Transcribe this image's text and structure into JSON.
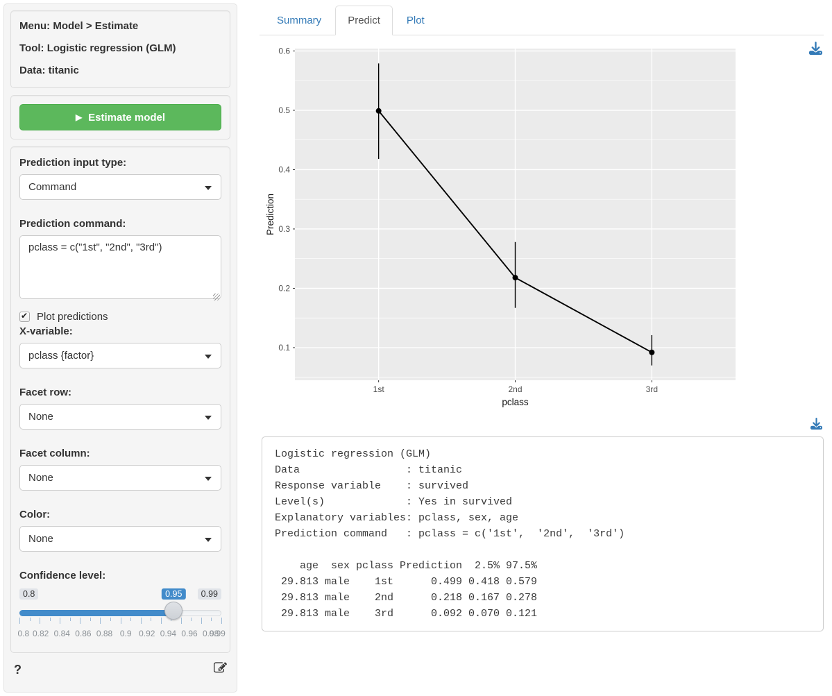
{
  "colors": {
    "accent_blue": "#337ab7",
    "slider_blue": "#428bca",
    "button_green": "#5cb85c",
    "panel_gray": "#ebebeb"
  },
  "sidebar": {
    "info": [
      "Menu: Model > Estimate",
      "Tool: Logistic regression (GLM)",
      "Data: titanic"
    ],
    "estimate_button": "Estimate model",
    "play_glyph": "▶",
    "controls": {
      "input_type_label": "Prediction input type:",
      "input_type_value": "Command",
      "command_label": "Prediction command:",
      "command_value": "pclass = c(\"1st\", \"2nd\", \"3rd\")",
      "plot_predictions": {
        "label": "Plot predictions",
        "checked": true
      },
      "xvar_label": "X-variable:",
      "xvar_value": "pclass {factor}",
      "facet_row_label": "Facet row:",
      "facet_row_value": "None",
      "facet_col_label": "Facet column:",
      "facet_col_value": "None",
      "color_label": "Color:",
      "color_value": "None",
      "conf_label": "Confidence level:",
      "slider": {
        "min": 0.8,
        "max": 0.99,
        "value": 0.95,
        "min_label": "0.8",
        "max_label": "0.99",
        "value_label": "0.95",
        "tick_labels": [
          "0.8",
          "0.82",
          "0.84",
          "0.86",
          "0.88",
          "0.9",
          "0.92",
          "0.94",
          "0.96",
          "0.98",
          "0.99"
        ],
        "n_ticks": 21
      }
    },
    "help_label": "?"
  },
  "tabs": [
    {
      "label": "Summary",
      "active": false
    },
    {
      "label": "Predict",
      "active": true
    },
    {
      "label": "Plot",
      "active": false
    }
  ],
  "chart_data": {
    "type": "line",
    "x": [
      "1st",
      "2nd",
      "3rd"
    ],
    "series": [
      {
        "name": "Prediction",
        "values": [
          0.499,
          0.218,
          0.092
        ],
        "ci_low": [
          0.418,
          0.167,
          0.07
        ],
        "ci_high": [
          0.579,
          0.278,
          0.121
        ]
      }
    ],
    "xlabel": "pclass",
    "ylabel": "Prediction",
    "ylim": [
      0.045,
      0.604
    ],
    "yticks": [
      0.1,
      0.2,
      0.3,
      0.4,
      0.5,
      0.6
    ],
    "grid": true,
    "legend": "none"
  },
  "output": {
    "lines": [
      "Logistic regression (GLM)",
      "Data                 : titanic",
      "Response variable    : survived",
      "Level(s)             : Yes in survived",
      "Explanatory variables: pclass, sex, age",
      "Prediction command   : pclass = c('1st',  '2nd',  '3rd')",
      "",
      "    age  sex pclass Prediction  2.5% 97.5%",
      " 29.813 male    1st      0.499 0.418 0.579",
      " 29.813 male    2nd      0.218 0.167 0.278",
      " 29.813 male    3rd      0.092 0.070 0.121"
    ]
  }
}
